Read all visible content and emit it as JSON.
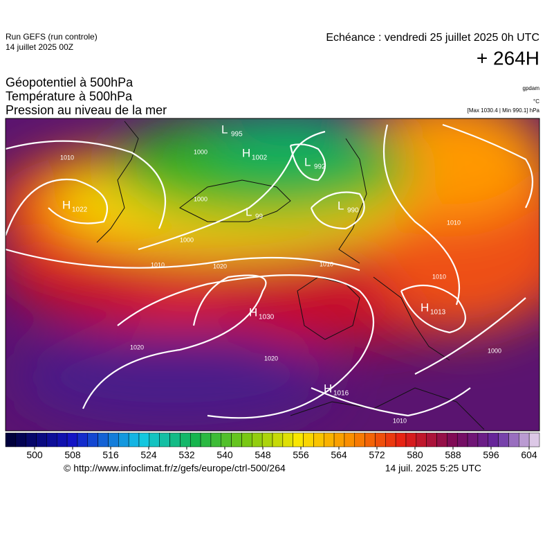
{
  "header": {
    "run": "Run GEFS (run controle)",
    "run_date": "14 juillet 2025 00Z",
    "echeance": "Echéance : vendredi 25 juillet 2025 0h UTC",
    "lead": "+ 264H"
  },
  "fields": [
    "Géopotentiel à 500hPa",
    "Température à 500hPa",
    "Pression au niveau de la mer"
  ],
  "units": [
    "gpdam",
    "°C",
    "[Max 1030.4 | Min 990.1] hPa"
  ],
  "pressure_centers": [
    {
      "type": "L",
      "value": "995"
    },
    {
      "type": "H",
      "value": "1002"
    },
    {
      "type": "L",
      "value": "992"
    },
    {
      "type": "H",
      "value": "1022"
    },
    {
      "type": "L",
      "value": "99"
    },
    {
      "type": "L",
      "value": "990"
    },
    {
      "type": "H",
      "value": "1030"
    },
    {
      "type": "H",
      "value": "1013"
    },
    {
      "type": "H",
      "value": "1016"
    }
  ],
  "isobar_labels": [
    "1010",
    "1000",
    "1000",
    "1000",
    "1010",
    "1020",
    "1010",
    "1010",
    "1010",
    "1020",
    "1020",
    "1000",
    "1010"
  ],
  "colorbar": {
    "ticks": [
      500,
      508,
      516,
      524,
      532,
      540,
      548,
      556,
      564,
      572,
      580,
      588,
      596,
      604
    ]
  },
  "footer": {
    "url": "© http://www.infoclimat.fr/z/gefs/europe/ctrl-500/264",
    "time": "14 juil. 2025  5:25 UTC"
  }
}
